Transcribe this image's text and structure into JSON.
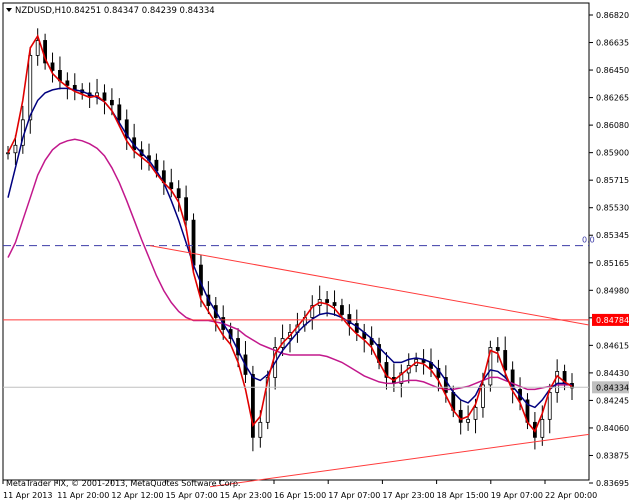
{
  "header": {
    "symbol": "NZDUSD,H1",
    "ohlc": "0.84251 0.84347 0.84239 0.84334"
  },
  "footer": {
    "copyright": "MetaTrader FIX, © 2001-2013, MetaQuotes Software Corp."
  },
  "price_labels": {
    "current": "0.84334",
    "hline": "0.84784",
    "dashed_level": "0.0"
  },
  "colors": {
    "candles": "#000000",
    "fast_ma": "#e00000",
    "mid_ma": "#00007f",
    "slow_ma": "#c2188c",
    "trendline": "#ff3b3b",
    "hline": "#ff3b3b",
    "dashed": "#3c3ca8",
    "current_price": "#c0c0c0",
    "hline_label_bg": "#ff0000",
    "current_label_bg": "#c0c0c0"
  },
  "chart_data": {
    "type": "candlestick",
    "y_ticks": [
      "0.86820",
      "0.86635",
      "0.86450",
      "0.86265",
      "0.86080",
      "0.85900",
      "0.85715",
      "0.85530",
      "0.85345",
      "0.85165",
      "0.84980",
      "0.84795",
      "0.84615",
      "0.84430",
      "0.84245",
      "0.84060",
      "0.83875",
      "0.83695"
    ],
    "x_ticks": [
      "11 Apr 2013",
      "11 Apr 20:00",
      "12 Apr 12:00",
      "15 Apr 07:00",
      "15 Apr 23:00",
      "16 Apr 15:00",
      "17 Apr 07:00",
      "17 Apr 23:00",
      "18 Apr 15:00",
      "19 Apr 07:00",
      "22 Apr 00:00"
    ],
    "ylim": [
      0.83695,
      0.8682
    ],
    "closes": [
      0.859,
      0.8595,
      0.8612,
      0.8655,
      0.8665,
      0.865,
      0.8645,
      0.8638,
      0.8635,
      0.8632,
      0.863,
      0.8628,
      0.863,
      0.8625,
      0.8622,
      0.8612,
      0.86,
      0.8592,
      0.8588,
      0.8585,
      0.8578,
      0.857,
      0.8566,
      0.856,
      0.8545,
      0.8515,
      0.8495,
      0.8488,
      0.848,
      0.8472,
      0.8466,
      0.8455,
      0.8442,
      0.84,
      0.841,
      0.844,
      0.846,
      0.8466,
      0.847,
      0.8475,
      0.848,
      0.8488,
      0.8492,
      0.849,
      0.8488,
      0.8482,
      0.8476,
      0.847,
      0.8466,
      0.8462,
      0.845,
      0.844,
      0.8436,
      0.8443,
      0.8448,
      0.8452,
      0.845,
      0.8446,
      0.844,
      0.843,
      0.8418,
      0.841,
      0.8412,
      0.842,
      0.8435,
      0.846,
      0.8458,
      0.8445,
      0.8432,
      0.8425,
      0.841,
      0.84,
      0.8412,
      0.843,
      0.8444,
      0.8436,
      0.8433
    ],
    "fast_ma": [
      0.859,
      0.86,
      0.8625,
      0.866,
      0.8668,
      0.8653,
      0.8643,
      0.8638,
      0.8634,
      0.8631,
      0.8629,
      0.8627,
      0.8628,
      0.8624,
      0.8618,
      0.8608,
      0.8598,
      0.8591,
      0.8587,
      0.8583,
      0.8576,
      0.857,
      0.8565,
      0.8557,
      0.854,
      0.851,
      0.8492,
      0.8484,
      0.8476,
      0.8468,
      0.8462,
      0.845,
      0.8432,
      0.8408,
      0.8414,
      0.8438,
      0.8456,
      0.8463,
      0.8468,
      0.8474,
      0.848,
      0.8487,
      0.849,
      0.8489,
      0.8486,
      0.848,
      0.8474,
      0.8469,
      0.8465,
      0.846,
      0.845,
      0.8441,
      0.8438,
      0.8442,
      0.8446,
      0.845,
      0.8449,
      0.8445,
      0.8438,
      0.8428,
      0.8418,
      0.8412,
      0.8414,
      0.8422,
      0.8438,
      0.8458,
      0.8456,
      0.8443,
      0.8431,
      0.8423,
      0.841,
      0.8404,
      0.8416,
      0.8432,
      0.8441,
      0.8437,
      0.8434
    ],
    "mid_ma": [
      0.856,
      0.858,
      0.86,
      0.8615,
      0.8625,
      0.863,
      0.8632,
      0.8633,
      0.8633,
      0.8632,
      0.8631,
      0.8629,
      0.8627,
      0.8624,
      0.8618,
      0.861,
      0.8602,
      0.8595,
      0.859,
      0.8585,
      0.8578,
      0.857,
      0.8558,
      0.8545,
      0.853,
      0.8515,
      0.8503,
      0.8492,
      0.8484,
      0.8476,
      0.8468,
      0.8458,
      0.8448,
      0.844,
      0.8438,
      0.8442,
      0.845,
      0.8458,
      0.8464,
      0.847,
      0.8475,
      0.8479,
      0.8482,
      0.8483,
      0.8482,
      0.848,
      0.8477,
      0.8474,
      0.847,
      0.8466,
      0.846,
      0.8455,
      0.845,
      0.845,
      0.8452,
      0.8453,
      0.8452,
      0.845,
      0.8445,
      0.8438,
      0.843,
      0.8425,
      0.8423,
      0.8428,
      0.8438,
      0.8445,
      0.8444,
      0.844,
      0.8434,
      0.8428,
      0.8422,
      0.842,
      0.8425,
      0.8432,
      0.8436,
      0.8436,
      0.8435
    ],
    "slow_ma": [
      0.852,
      0.853,
      0.8545,
      0.856,
      0.8575,
      0.8585,
      0.8592,
      0.8596,
      0.8598,
      0.8599,
      0.8598,
      0.8596,
      0.8593,
      0.8588,
      0.858,
      0.857,
      0.8558,
      0.8545,
      0.8532,
      0.852,
      0.8508,
      0.8498,
      0.849,
      0.8484,
      0.848,
      0.8478,
      0.8478,
      0.8478,
      0.8477,
      0.8476,
      0.8474,
      0.8472,
      0.8468,
      0.8465,
      0.8462,
      0.846,
      0.8458,
      0.8456,
      0.8455,
      0.8455,
      0.8455,
      0.8455,
      0.8455,
      0.8454,
      0.8452,
      0.845,
      0.8447,
      0.8444,
      0.8441,
      0.8439,
      0.8437,
      0.8436,
      0.8436,
      0.8437,
      0.8438,
      0.8438,
      0.8437,
      0.8435,
      0.8433,
      0.8432,
      0.8432,
      0.8433,
      0.8434,
      0.8436,
      0.8438,
      0.844,
      0.844,
      0.8438,
      0.8436,
      0.8434,
      0.8432,
      0.8432,
      0.8433,
      0.8434,
      0.8435,
      0.8435,
      0.8435
    ],
    "dashed_level": 0.8528,
    "hline_level": 0.84784,
    "current_price": 0.84334,
    "trendline_upper": [
      [
        0.8528,
        0.8475
      ]
    ],
    "trendline_lower": [
      [
        0.8367,
        0.8402
      ]
    ]
  }
}
